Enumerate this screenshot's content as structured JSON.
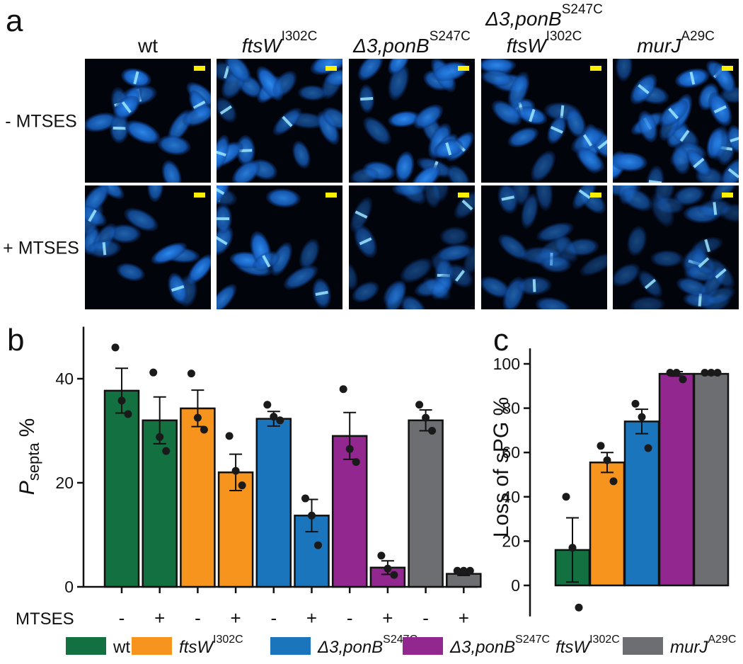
{
  "panel_a": {
    "label": "a",
    "columns": [
      [
        {
          "base": "wt"
        }
      ],
      [
        {
          "base": "ftsW",
          "sup": "I302C",
          "italic": true
        }
      ],
      [
        {
          "base": "Δ3,ponB",
          "sup": "S247C",
          "italic": true
        }
      ],
      [
        {
          "base": "Δ3,ponB",
          "sup": "S247C",
          "italic": true
        },
        {
          "base": "ftsW",
          "sup": "I302C",
          "italic": true
        }
      ],
      [
        {
          "base": "murJ",
          "sup": "A29C",
          "italic": true
        }
      ]
    ],
    "rows": [
      "- MTSES",
      "+ MTSES"
    ]
  },
  "chart_data": [
    {
      "type": "bar",
      "panel": "b",
      "ylabel": {
        "base": "P",
        "sub": "septa",
        "suffix": "%"
      },
      "xlabel": "MTSES",
      "categories": [
        "-",
        "+",
        "-",
        "+",
        "-",
        "+",
        "-",
        "+",
        "-",
        "+"
      ],
      "values": [
        37.7,
        32,
        34.3,
        22,
        32.3,
        13.7,
        29,
        3.7,
        32,
        2.5
      ],
      "errors": [
        4.3,
        4.5,
        3.5,
        3.5,
        1.4,
        3.1,
        4.5,
        1.3,
        2,
        0.3
      ],
      "points": [
        [
          46,
          35.8,
          33.2
        ],
        [
          41.2,
          28.8,
          26.1
        ],
        [
          41,
          32.5,
          30.2
        ],
        [
          29,
          22.3,
          19.5
        ],
        [
          35,
          32.7,
          32
        ],
        [
          17,
          13.7,
          8
        ],
        [
          38,
          26.5,
          24
        ],
        [
          6,
          3.5,
          2.3
        ],
        [
          35,
          32.5,
          30
        ],
        [
          3.1,
          3.1,
          3.1
        ]
      ],
      "colors": [
        "#137040",
        "#137040",
        "#f7941d",
        "#f7941d",
        "#1b75bc",
        "#1b75bc",
        "#92278f",
        "#92278f",
        "#6d6e71",
        "#6d6e71"
      ],
      "ylim": [
        0,
        50
      ],
      "yticks": [
        0,
        20,
        40
      ]
    },
    {
      "type": "bar",
      "panel": "c",
      "ylabel": "Loss of sPG %",
      "values": [
        16,
        55.5,
        74,
        95.5,
        95.5
      ],
      "errors": [
        14.5,
        4.5,
        5.5,
        1,
        0.5
      ],
      "points": [
        [
          40,
          17,
          -10
        ],
        [
          63,
          56.5,
          47
        ],
        [
          82,
          76,
          62
        ],
        [
          96,
          96,
          93
        ],
        [
          96,
          96,
          96
        ]
      ],
      "colors": [
        "#137040",
        "#f7941d",
        "#1b75bc",
        "#92278f",
        "#6d6e71"
      ],
      "ylim": [
        -14,
        107
      ],
      "yticks": [
        0,
        20,
        40,
        60,
        80,
        100
      ]
    }
  ],
  "legend": [
    {
      "color": "#137040",
      "parts": [
        {
          "base": "wt"
        }
      ]
    },
    {
      "color": "#f7941d",
      "parts": [
        {
          "base": "ftsW",
          "sup": "I302C",
          "italic": true
        }
      ]
    },
    {
      "color": "#1b75bc",
      "parts": [
        {
          "base": "Δ3,ponB",
          "sup": "S247C",
          "italic": true
        }
      ]
    },
    {
      "color": "#92278f",
      "parts": [
        {
          "base": "Δ3,ponB",
          "sup": "S247C",
          "italic": true
        },
        {
          "base": "ftsW",
          "sup": "I302C",
          "italic": true
        }
      ]
    },
    {
      "color": "#6d6e71",
      "parts": [
        {
          "base": "murJ",
          "sup": "A29C",
          "italic": true
        }
      ]
    }
  ]
}
